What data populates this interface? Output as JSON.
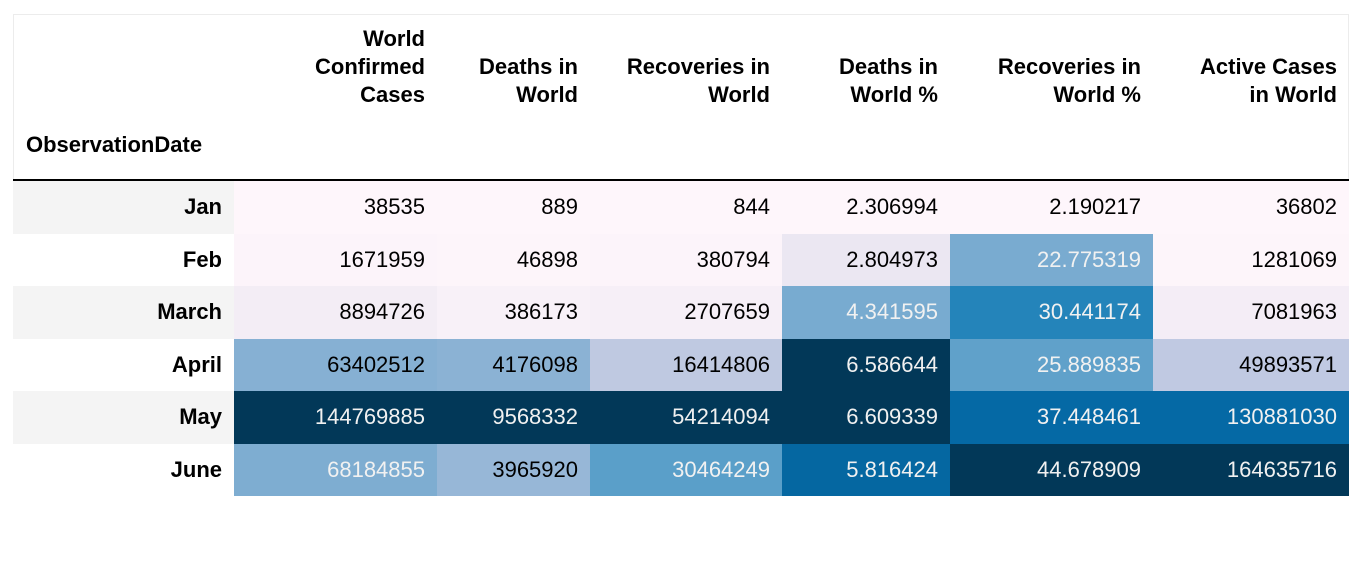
{
  "chart_data": {
    "type": "table",
    "index_name": "ObservationDate",
    "columns": [
      "World Confirmed Cases",
      "Deaths in World",
      "Recoveries in World",
      "Deaths in World %",
      "Recoveries in World %",
      "Active Cases in World"
    ],
    "column_lines": [
      [
        "World",
        "Confirmed",
        "Cases"
      ],
      [
        "Deaths in",
        "World"
      ],
      [
        "Recoveries in",
        "World"
      ],
      [
        "Deaths in",
        "World %"
      ],
      [
        "Recoveries in",
        "World %"
      ],
      [
        "Active Cases",
        "in World"
      ]
    ],
    "rows": [
      {
        "label": "Jan",
        "values": [
          "38535",
          "889",
          "844",
          "2.306994",
          "2.190217",
          "36802"
        ]
      },
      {
        "label": "Feb",
        "values": [
          "1671959",
          "46898",
          "380794",
          "2.804973",
          "22.775319",
          "1281069"
        ]
      },
      {
        "label": "March",
        "values": [
          "8894726",
          "386173",
          "2707659",
          "4.341595",
          "30.441174",
          "7081963"
        ]
      },
      {
        "label": "April",
        "values": [
          "63402512",
          "4176098",
          "16414806",
          "6.586644",
          "25.889835",
          "49893571"
        ]
      },
      {
        "label": "May",
        "values": [
          "144769885",
          "9568332",
          "54214094",
          "6.609339",
          "37.448461",
          "130881030"
        ]
      },
      {
        "label": "June",
        "values": [
          "68184855",
          "3965920",
          "30464249",
          "5.816424",
          "44.678909",
          "164635716"
        ]
      }
    ],
    "cell_colors": [
      [
        "#fef6fb",
        "#fef6fb",
        "#fef6fb",
        "#fef6fb",
        "#fef6fb",
        "#fef6fb"
      ],
      [
        "#fcf4fa",
        "#fdf5fa",
        "#fcf4fa",
        "#ebe7f2",
        "#79abd0",
        "#fdf5fa"
      ],
      [
        "#f3edf5",
        "#f8f1f8",
        "#f6eff7",
        "#78abd0",
        "#2484ba",
        "#f4edf6"
      ],
      [
        "#86b0d3",
        "#8bb2d4",
        "#bfc9e1",
        "#023858",
        "#60a1ca",
        "#c0c9e2"
      ],
      [
        "#023858",
        "#023858",
        "#023858",
        "#023858",
        "#0569a5",
        "#0569a5"
      ],
      [
        "#7eadd1",
        "#97b7d7",
        "#5a9fc9",
        "#0567a1",
        "#023858",
        "#023858"
      ]
    ],
    "cell_text_colors": [
      [
        "#000000",
        "#000000",
        "#000000",
        "#000000",
        "#000000",
        "#000000"
      ],
      [
        "#000000",
        "#000000",
        "#000000",
        "#000000",
        "#f1f1f1",
        "#000000"
      ],
      [
        "#000000",
        "#000000",
        "#000000",
        "#f1f1f1",
        "#f1f1f1",
        "#000000"
      ],
      [
        "#000000",
        "#000000",
        "#000000",
        "#f1f1f1",
        "#f1f1f1",
        "#000000"
      ],
      [
        "#f1f1f1",
        "#f1f1f1",
        "#f1f1f1",
        "#f1f1f1",
        "#f1f1f1",
        "#f1f1f1"
      ],
      [
        "#f1f1f1",
        "#000000",
        "#f1f1f1",
        "#f1f1f1",
        "#f1f1f1",
        "#f1f1f1"
      ]
    ],
    "colormap": "PuBu"
  }
}
